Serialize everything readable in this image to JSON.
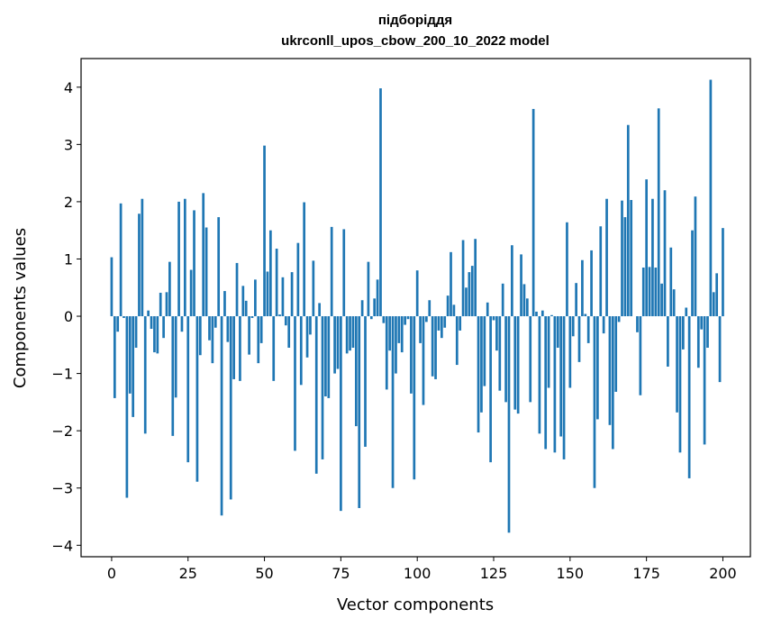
{
  "chart_data": {
    "type": "bar",
    "title": "підборіддя",
    "subtitle": "ukrconll_upos_cbow_200_10_2022 model",
    "xlabel": "Vector components",
    "ylabel": "Components values",
    "xlim": [
      -10,
      209
    ],
    "ylim": [
      -4.2,
      4.5
    ],
    "xticks": [
      0,
      25,
      50,
      75,
      100,
      125,
      150,
      175,
      200
    ],
    "xtick_labels": [
      "0",
      "25",
      "50",
      "75",
      "100",
      "125",
      "150",
      "175",
      "200"
    ],
    "yticks": [
      -4,
      -3,
      -2,
      -1,
      0,
      1,
      2,
      3,
      4
    ],
    "ytick_labels": [
      "−4",
      "−3",
      "−2",
      "−1",
      "0",
      "1",
      "2",
      "3",
      "4"
    ],
    "bar_color": "#1f77b4",
    "grid": false,
    "x_start": 0,
    "values": [
      1.03,
      -1.43,
      -0.27,
      1.97,
      -0.03,
      -3.17,
      -1.35,
      -1.76,
      -0.55,
      1.79,
      2.05,
      -2.05,
      0.1,
      -0.22,
      -0.63,
      -0.65,
      0.41,
      -0.38,
      0.42,
      0.95,
      -2.09,
      -1.42,
      2.0,
      -0.27,
      2.05,
      -2.55,
      0.81,
      1.85,
      -2.89,
      -0.68,
      2.15,
      1.55,
      -0.42,
      -0.82,
      -0.2,
      1.73,
      -3.48,
      0.44,
      -0.45,
      -3.2,
      -1.1,
      0.93,
      -1.13,
      0.53,
      0.27,
      -0.67,
      -0.03,
      0.64,
      -0.82,
      -0.47,
      2.98,
      0.78,
      1.5,
      -1.13,
      1.18,
      0.03,
      0.68,
      -0.16,
      -0.55,
      0.77,
      -2.35,
      1.28,
      -1.2,
      1.99,
      -0.72,
      -0.32,
      0.97,
      -2.75,
      0.23,
      -2.5,
      -1.4,
      -1.43,
      1.56,
      -1.0,
      -0.92,
      -3.4,
      1.52,
      -0.65,
      -0.6,
      -0.55,
      -1.92,
      -3.35,
      0.28,
      -2.28,
      0.95,
      -0.05,
      0.31,
      0.64,
      3.98,
      -0.12,
      -1.28,
      -0.6,
      -3.0,
      -1.0,
      -0.47,
      -0.63,
      -0.15,
      -0.05,
      -1.35,
      -2.85,
      0.8,
      -0.47,
      -1.55,
      -0.1,
      0.28,
      -1.05,
      -1.1,
      -0.25,
      -0.38,
      -0.2,
      0.36,
      1.12,
      0.2,
      -0.85,
      -0.25,
      1.33,
      0.5,
      0.77,
      0.88,
      1.35,
      -2.03,
      -1.68,
      -1.22,
      0.24,
      -2.55,
      -0.07,
      -0.6,
      -1.3,
      0.57,
      -1.5,
      -3.78,
      1.24,
      -1.63,
      -1.7,
      1.08,
      0.56,
      0.31,
      -1.5,
      3.62,
      0.08,
      -2.05,
      0.1,
      -2.32,
      -1.25,
      0.02,
      -2.38,
      -0.55,
      -2.1,
      -2.5,
      1.64,
      -1.25,
      -0.35,
      0.58,
      -0.8,
      0.98,
      0.04,
      -0.47,
      1.15,
      -3.0,
      -1.8,
      1.57,
      -0.3,
      2.05,
      -1.9,
      -2.32,
      -1.32,
      -0.1,
      2.02,
      1.73,
      3.34,
      2.03,
      0.0,
      -0.28,
      -1.38,
      0.85,
      2.39,
      0.86,
      2.05,
      0.85,
      3.63,
      0.57,
      2.2,
      -0.88,
      1.2,
      0.47,
      -1.68,
      -2.38,
      -0.58,
      0.15,
      -2.83,
      1.5,
      2.09,
      -0.9,
      -0.23,
      -2.24,
      -0.55,
      4.13,
      0.42,
      0.75,
      -1.15,
      1.54
    ]
  }
}
